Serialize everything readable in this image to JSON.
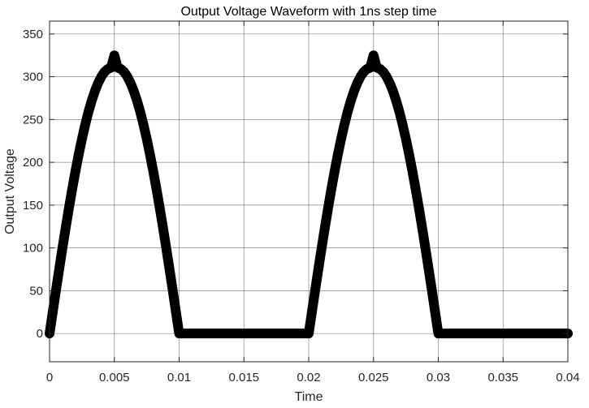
{
  "chart_data": {
    "type": "scatter",
    "title": "Output Voltage Waveform with 1ns step time",
    "xlabel": "Time",
    "ylabel": "Output Voltage",
    "xlim": [
      0,
      0.04
    ],
    "ylim": [
      -33,
      365
    ],
    "xticks": [
      0,
      0.005,
      0.01,
      0.015,
      0.02,
      0.025,
      0.03,
      0.035,
      0.04
    ],
    "xtick_labels": [
      "0",
      "0.005",
      "0.01",
      "0.015",
      "0.02",
      "0.025",
      "0.03",
      "0.035",
      "0.04"
    ],
    "yticks": [
      0,
      50,
      100,
      150,
      200,
      250,
      300,
      350
    ],
    "ytick_labels": [
      "0",
      "50",
      "100",
      "150",
      "200",
      "250",
      "300",
      "350"
    ],
    "grid": true,
    "series": [
      {
        "marker": "circle",
        "color": "#000000",
        "x": [
          0,
          0.00025,
          0.0005,
          0.00075,
          0.001,
          0.00125,
          0.0015,
          0.00175,
          0.002,
          0.00225,
          0.0025,
          0.00275,
          0.003,
          0.00325,
          0.0035,
          0.00375,
          0.004,
          0.00425,
          0.0045,
          0.00475,
          0.005,
          0.00525,
          0.0055,
          0.00575,
          0.006,
          0.00625,
          0.0065,
          0.00675,
          0.007,
          0.00725,
          0.0075,
          0.00775,
          0.008,
          0.00825,
          0.0085,
          0.00875,
          0.009,
          0.00925,
          0.0095,
          0.00975,
          0.01,
          0.0105,
          0.011,
          0.0115,
          0.012,
          0.0125,
          0.013,
          0.0135,
          0.014,
          0.0145,
          0.015,
          0.0155,
          0.016,
          0.0165,
          0.017,
          0.0175,
          0.018,
          0.0185,
          0.019,
          0.0195,
          0.02,
          0.02025,
          0.0205,
          0.02075,
          0.021,
          0.02125,
          0.0215,
          0.02175,
          0.022,
          0.02225,
          0.0225,
          0.02275,
          0.023,
          0.02325,
          0.0235,
          0.02375,
          0.024,
          0.02425,
          0.0245,
          0.02475,
          0.025,
          0.02525,
          0.0255,
          0.02575,
          0.026,
          0.02625,
          0.0265,
          0.02675,
          0.027,
          0.02725,
          0.0275,
          0.02775,
          0.028,
          0.02825,
          0.0285,
          0.02875,
          0.029,
          0.02925,
          0.0295,
          0.02975,
          0.03,
          0.0305,
          0.031,
          0.0315,
          0.032,
          0.0325,
          0.033,
          0.0335,
          0.034,
          0.0345,
          0.035,
          0.0355,
          0.036,
          0.0365,
          0.037,
          0.0375,
          0.038,
          0.0385,
          0.039,
          0.0395,
          0.04
        ],
        "y": [
          0,
          25.5,
          50.9,
          75.8,
          100.3,
          124.0,
          147.0,
          168.9,
          189.7,
          209.2,
          227.3,
          243.9,
          258.8,
          271.9,
          283.3,
          292.7,
          300.2,
          305.7,
          309.1,
          310.6,
          325,
          310.6,
          309.1,
          305.7,
          300.2,
          292.7,
          283.3,
          271.9,
          258.8,
          243.9,
          227.3,
          209.2,
          189.7,
          168.9,
          147.0,
          124.0,
          100.3,
          75.8,
          50.9,
          25.5,
          0,
          0,
          0,
          0,
          0,
          0,
          0,
          0,
          0,
          0,
          0,
          0,
          0,
          0,
          0,
          0,
          0,
          0,
          0,
          0,
          0,
          25.5,
          50.9,
          75.8,
          100.3,
          124.0,
          147.0,
          168.9,
          189.7,
          209.2,
          227.3,
          243.9,
          258.8,
          271.9,
          283.3,
          292.7,
          300.2,
          305.7,
          309.1,
          310.6,
          325,
          310.6,
          309.1,
          305.7,
          300.2,
          292.7,
          283.3,
          271.9,
          258.8,
          243.9,
          227.3,
          209.2,
          189.7,
          168.9,
          147.0,
          124.0,
          100.3,
          75.8,
          50.9,
          25.5,
          0,
          0,
          0,
          0,
          0,
          0,
          0,
          0,
          0,
          0,
          0,
          0,
          0,
          0,
          0,
          0,
          0,
          0,
          0,
          0,
          0
        ]
      }
    ]
  }
}
